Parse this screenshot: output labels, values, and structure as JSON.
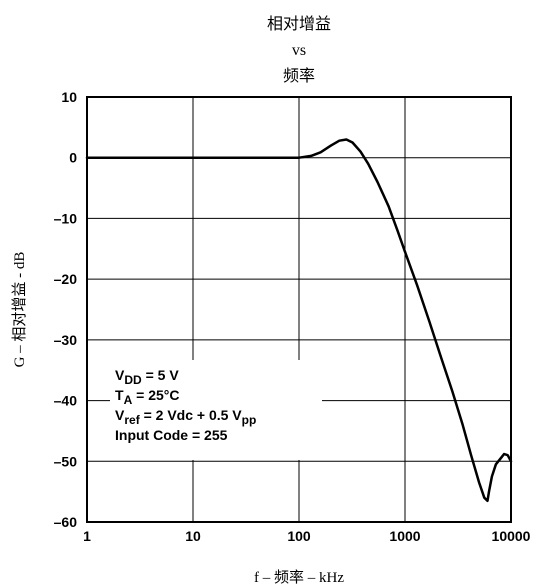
{
  "chart_data": {
    "type": "line",
    "title_lines": [
      "相对增益",
      "vs",
      "频率"
    ],
    "xlabel": "f – 频率 – kHz",
    "ylabel": "G – 相对增益 - dB",
    "xscale": "log",
    "xlim": [
      1,
      10000
    ],
    "ylim": [
      -60,
      10
    ],
    "x_ticks": [
      1,
      10,
      100,
      1000,
      10000
    ],
    "x_tick_labels": [
      "1",
      "10",
      "100",
      "1000",
      "10000"
    ],
    "y_ticks": [
      10,
      0,
      -10,
      -20,
      -30,
      -40,
      -50,
      -60
    ],
    "y_tick_labels": [
      "10",
      "0",
      "–10",
      "–20",
      "–30",
      "–40",
      "–50",
      "–60"
    ],
    "grid": true,
    "line_color": "#000000",
    "series": [
      {
        "x": [
          1,
          10,
          50,
          100,
          130,
          160,
          200,
          240,
          280,
          320,
          380,
          450,
          550,
          700,
          850,
          1000,
          1300,
          1700,
          2200,
          2800,
          3500,
          4200,
          5000,
          5600,
          6000,
          6200,
          6600,
          7200,
          8000,
          8600,
          9300,
          10000
        ],
        "y": [
          0,
          0,
          0,
          0,
          0.3,
          0.9,
          2.0,
          2.8,
          3.0,
          2.5,
          1.0,
          -1.0,
          -4.0,
          -8.0,
          -12.0,
          -15.5,
          -21.0,
          -27.0,
          -33.0,
          -38.5,
          -44.0,
          -49.0,
          -53.5,
          -56.0,
          -56.5,
          -55.0,
          -52.5,
          -50.5,
          -49.5,
          -48.8,
          -49.0,
          -50.0
        ]
      }
    ],
    "annotation": {
      "lines": [
        {
          "main": "V",
          "sub": "DD",
          "rest": " = 5 V",
          "sub2": ""
        },
        {
          "main": "T",
          "sub": "A",
          "rest": " = 25°C",
          "sub2": ""
        },
        {
          "main": "V",
          "sub": "ref",
          "rest": " = 2 Vdc + 0.5 V",
          "sub2": "pp"
        },
        {
          "main": "Input Code = 255",
          "sub": "",
          "rest": "",
          "sub2": ""
        }
      ]
    }
  }
}
